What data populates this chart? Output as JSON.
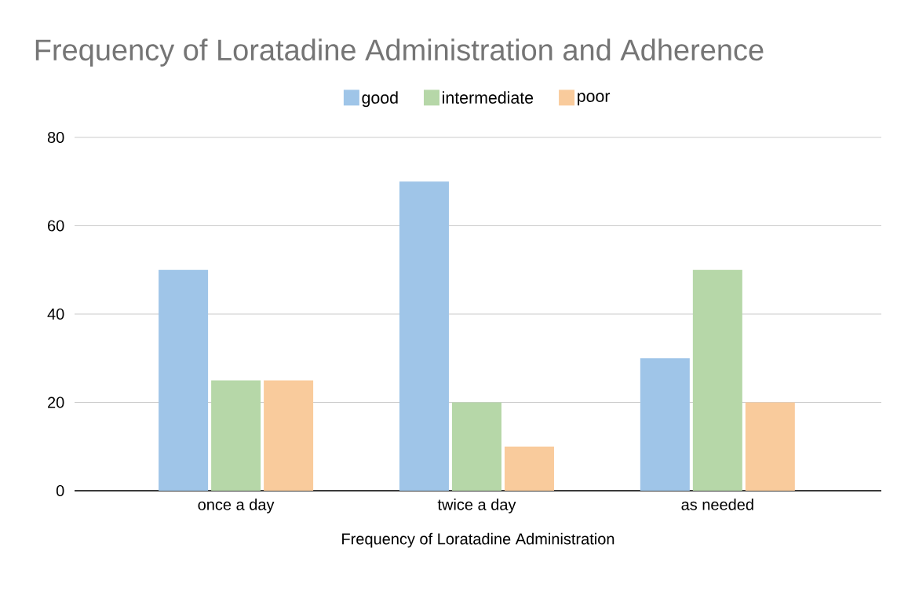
{
  "chart_data": {
    "type": "bar",
    "title": "Frequency of Loratadine Administration and Adherence",
    "xlabel": "Frequency of Loratadine Administration",
    "categories": [
      "once a day",
      "twice a day",
      "as needed"
    ],
    "series": [
      {
        "name": "good",
        "color": "#9fc5e8",
        "values": [
          50,
          70,
          30
        ]
      },
      {
        "name": "intermediate",
        "color": "#b6d7a8",
        "values": [
          25,
          20,
          50
        ]
      },
      {
        "name": "poor",
        "color": "#f9cb9c",
        "values": [
          25,
          10,
          20
        ]
      }
    ],
    "ylim": [
      0,
      80
    ],
    "yticks": [
      0,
      20,
      40,
      60,
      80
    ],
    "grid": "y",
    "legend": "top"
  }
}
